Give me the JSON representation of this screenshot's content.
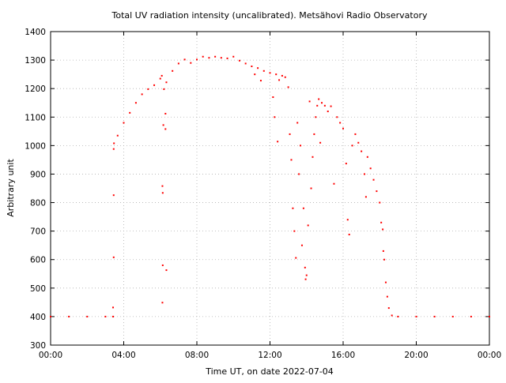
{
  "chart_data": {
    "type": "scatter",
    "title": "Total UV radiation intensity (uncalibrated). Metsähovi Radio Observatory",
    "xlabel": "Time UT, on date 2022-07-04",
    "ylabel": "Arbitrary unit",
    "xlim": [
      "00:00",
      "24:00"
    ],
    "ylim": [
      300,
      1400
    ],
    "x_ticks": [
      "00:00",
      "04:00",
      "08:00",
      "12:00",
      "16:00",
      "20:00",
      "00:00"
    ],
    "y_ticks": [
      300,
      400,
      500,
      600,
      700,
      800,
      900,
      1000,
      1100,
      1200,
      1300,
      1400
    ],
    "grid": true,
    "legend": "none",
    "point_color": "#ff0000",
    "series": [
      {
        "values": [
          {
            "x": "00:00",
            "y": 400
          },
          {
            "x": "01:00",
            "y": 400
          },
          {
            "x": "02:00",
            "y": 400
          },
          {
            "x": "03:00",
            "y": 400
          },
          {
            "x": "03:25",
            "y": 400
          },
          {
            "x": "03:25",
            "y": 432
          },
          {
            "x": "03:27",
            "y": 608
          },
          {
            "x": "03:27",
            "y": 826
          },
          {
            "x": "03:27",
            "y": 988
          },
          {
            "x": "03:28",
            "y": 1008
          },
          {
            "x": "03:40",
            "y": 1035
          },
          {
            "x": "04:00",
            "y": 1080
          },
          {
            "x": "04:20",
            "y": 1115
          },
          {
            "x": "04:40",
            "y": 1150
          },
          {
            "x": "05:00",
            "y": 1180
          },
          {
            "x": "05:20",
            "y": 1198
          },
          {
            "x": "05:40",
            "y": 1212
          },
          {
            "x": "06:00",
            "y": 1235
          },
          {
            "x": "06:05",
            "y": 1245
          },
          {
            "x": "06:07",
            "y": 858
          },
          {
            "x": "06:08",
            "y": 834
          },
          {
            "x": "06:08",
            "y": 580
          },
          {
            "x": "06:07",
            "y": 449
          },
          {
            "x": "06:10",
            "y": 1072
          },
          {
            "x": "06:12",
            "y": 1198
          },
          {
            "x": "06:17",
            "y": 1112
          },
          {
            "x": "06:17",
            "y": 1058
          },
          {
            "x": "06:20",
            "y": 563
          },
          {
            "x": "06:20",
            "y": 1222
          },
          {
            "x": "06:40",
            "y": 1262
          },
          {
            "x": "07:00",
            "y": 1288
          },
          {
            "x": "07:20",
            "y": 1302
          },
          {
            "x": "07:40",
            "y": 1290
          },
          {
            "x": "08:00",
            "y": 1302
          },
          {
            "x": "08:20",
            "y": 1312
          },
          {
            "x": "08:40",
            "y": 1308
          },
          {
            "x": "09:00",
            "y": 1312
          },
          {
            "x": "09:20",
            "y": 1308
          },
          {
            "x": "09:40",
            "y": 1306
          },
          {
            "x": "10:00",
            "y": 1312
          },
          {
            "x": "10:20",
            "y": 1298
          },
          {
            "x": "10:40",
            "y": 1288
          },
          {
            "x": "11:00",
            "y": 1278
          },
          {
            "x": "11:10",
            "y": 1250
          },
          {
            "x": "11:20",
            "y": 1272
          },
          {
            "x": "11:30",
            "y": 1228
          },
          {
            "x": "11:40",
            "y": 1262
          },
          {
            "x": "12:00",
            "y": 1255
          },
          {
            "x": "12:10",
            "y": 1170
          },
          {
            "x": "12:15",
            "y": 1100
          },
          {
            "x": "12:20",
            "y": 1250
          },
          {
            "x": "12:25",
            "y": 1014
          },
          {
            "x": "12:30",
            "y": 1230
          },
          {
            "x": "12:40",
            "y": 1245
          },
          {
            "x": "12:50",
            "y": 1240
          },
          {
            "x": "13:00",
            "y": 1205
          },
          {
            "x": "13:05",
            "y": 1040
          },
          {
            "x": "13:10",
            "y": 950
          },
          {
            "x": "13:15",
            "y": 780
          },
          {
            "x": "13:20",
            "y": 700
          },
          {
            "x": "13:25",
            "y": 606
          },
          {
            "x": "13:30",
            "y": 1080
          },
          {
            "x": "13:35",
            "y": 900
          },
          {
            "x": "13:40",
            "y": 1000
          },
          {
            "x": "13:45",
            "y": 650
          },
          {
            "x": "13:50",
            "y": 780
          },
          {
            "x": "13:55",
            "y": 572
          },
          {
            "x": "13:57",
            "y": 531
          },
          {
            "x": "14:00",
            "y": 545
          },
          {
            "x": "14:05",
            "y": 720
          },
          {
            "x": "14:10",
            "y": 1155
          },
          {
            "x": "14:15",
            "y": 850
          },
          {
            "x": "14:20",
            "y": 960
          },
          {
            "x": "14:25",
            "y": 1040
          },
          {
            "x": "14:30",
            "y": 1100
          },
          {
            "x": "14:35",
            "y": 1140
          },
          {
            "x": "14:40",
            "y": 1163
          },
          {
            "x": "14:45",
            "y": 1010
          },
          {
            "x": "14:50",
            "y": 1150
          },
          {
            "x": "15:00",
            "y": 1140
          },
          {
            "x": "15:10",
            "y": 1120
          },
          {
            "x": "15:20",
            "y": 1138
          },
          {
            "x": "15:30",
            "y": 866
          },
          {
            "x": "15:40",
            "y": 1100
          },
          {
            "x": "15:50",
            "y": 1080
          },
          {
            "x": "16:00",
            "y": 1060
          },
          {
            "x": "16:10",
            "y": 937
          },
          {
            "x": "16:15",
            "y": 740
          },
          {
            "x": "16:20",
            "y": 688
          },
          {
            "x": "16:30",
            "y": 1000
          },
          {
            "x": "16:40",
            "y": 1040
          },
          {
            "x": "16:50",
            "y": 1010
          },
          {
            "x": "17:00",
            "y": 980
          },
          {
            "x": "17:10",
            "y": 900
          },
          {
            "x": "17:15",
            "y": 820
          },
          {
            "x": "17:20",
            "y": 960
          },
          {
            "x": "17:30",
            "y": 920
          },
          {
            "x": "17:40",
            "y": 880
          },
          {
            "x": "17:50",
            "y": 840
          },
          {
            "x": "18:00",
            "y": 800
          },
          {
            "x": "18:05",
            "y": 730
          },
          {
            "x": "18:10",
            "y": 706
          },
          {
            "x": "18:12",
            "y": 630
          },
          {
            "x": "18:15",
            "y": 600
          },
          {
            "x": "18:20",
            "y": 520
          },
          {
            "x": "18:25",
            "y": 470
          },
          {
            "x": "18:30",
            "y": 430
          },
          {
            "x": "18:40",
            "y": 404
          },
          {
            "x": "19:00",
            "y": 400
          },
          {
            "x": "20:00",
            "y": 400
          },
          {
            "x": "21:00",
            "y": 400
          },
          {
            "x": "22:00",
            "y": 400
          },
          {
            "x": "23:00",
            "y": 400
          },
          {
            "x": "24:00",
            "y": 400
          }
        ]
      }
    ]
  }
}
